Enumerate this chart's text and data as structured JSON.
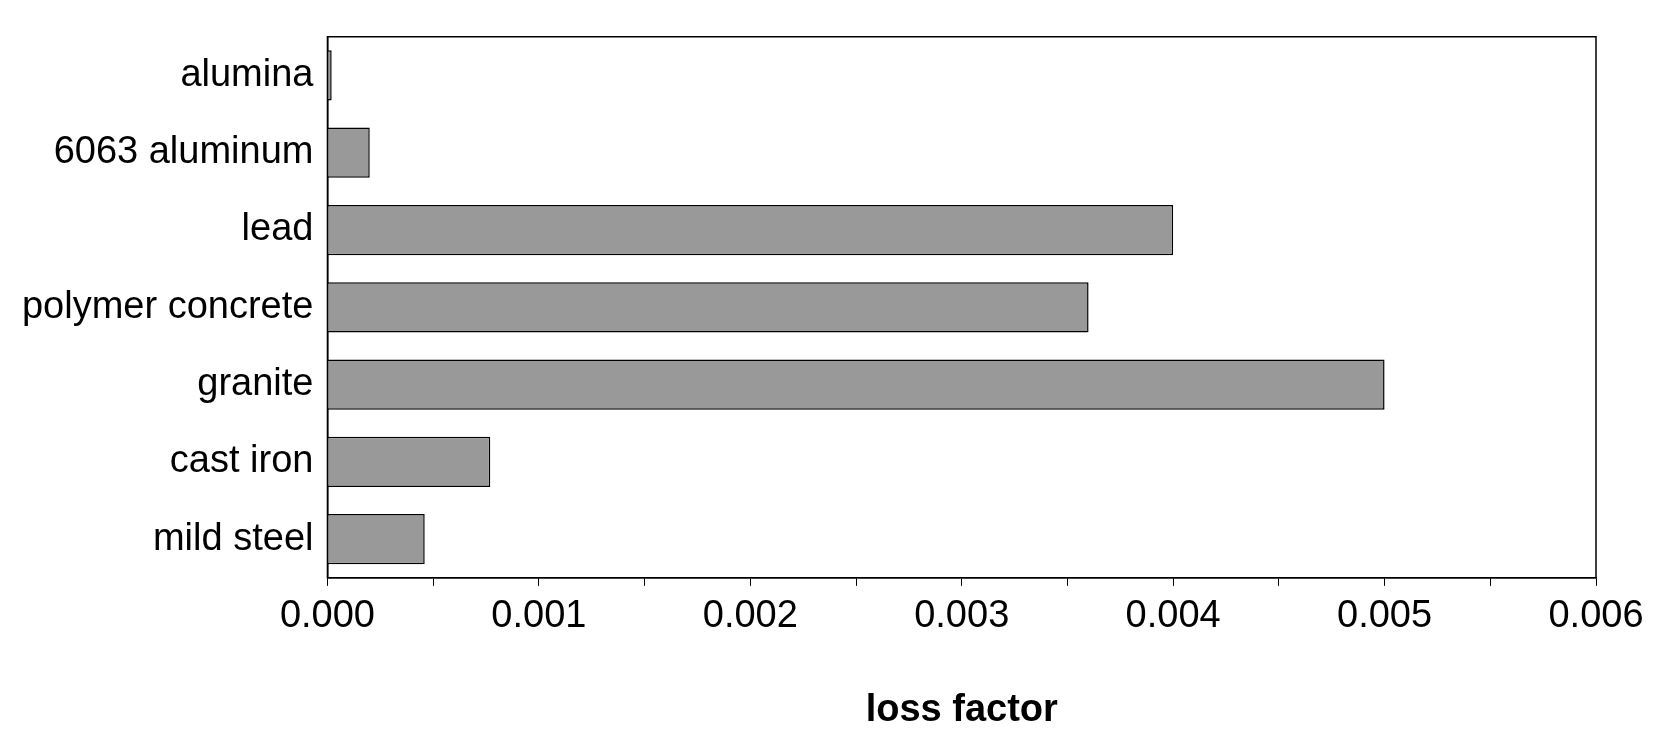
{
  "chart_data": {
    "type": "bar",
    "orientation": "horizontal",
    "xlabel": "loss factor",
    "categories": [
      "alumina",
      "6063 aluminum",
      "lead",
      "polymer concrete",
      "granite",
      "cast iron",
      "mild steel"
    ],
    "values": [
      2e-05,
      0.0002,
      0.004,
      0.0036,
      0.005,
      0.00077,
      0.00046
    ],
    "color": "#999999",
    "xlim": [
      0,
      0.006
    ],
    "xticks": [
      {
        "value": 0,
        "label": "0.000"
      },
      {
        "value": 0.0005,
        "label": null
      },
      {
        "value": 0.001,
        "label": "0.001"
      },
      {
        "value": 0.0015,
        "label": null
      },
      {
        "value": 0.002,
        "label": "0.002"
      },
      {
        "value": 0.0025,
        "label": null
      },
      {
        "value": 0.003,
        "label": "0.003"
      },
      {
        "value": 0.0035,
        "label": null
      },
      {
        "value": 0.004,
        "label": "0.004"
      },
      {
        "value": 0.0045,
        "label": null
      },
      {
        "value": 0.005,
        "label": "0.005"
      },
      {
        "value": 0.0055,
        "label": null
      },
      {
        "value": 0.006,
        "label": "0.006"
      }
    ],
    "grid": false,
    "legend": false
  }
}
